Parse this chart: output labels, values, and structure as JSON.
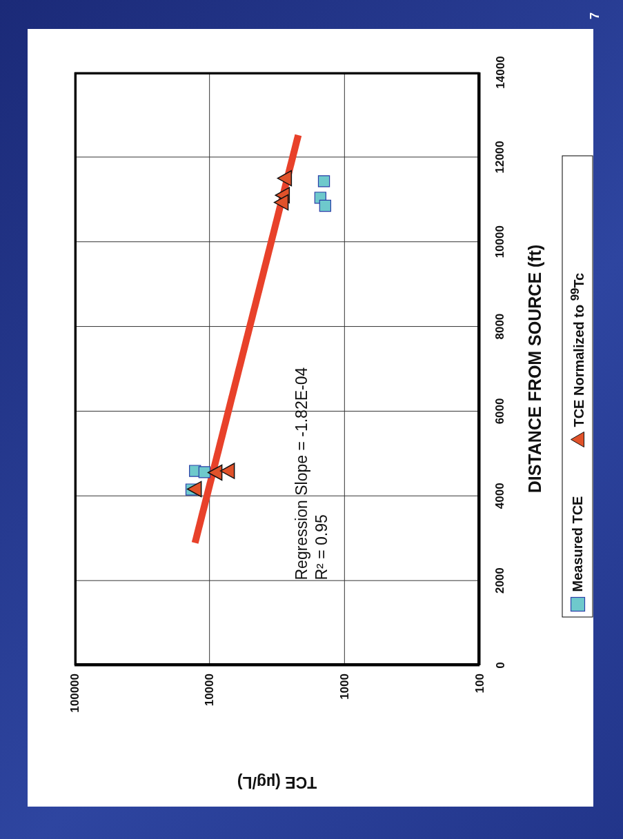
{
  "chart_data": {
    "type": "scatter",
    "xlabel": "TCE  (µg/L)",
    "ylabel": "DISTANCE FROM SOURCE  (ft)",
    "series": [
      {
        "name": "Measured TCE",
        "color": "#6ec9cc",
        "marker": "square",
        "x": [
          12800,
          10900,
          13600,
          1420,
          1510,
          1390
        ],
        "values": [
          4590,
          4560,
          4150,
          11430,
          11040,
          10850
        ]
      },
      {
        "name": "TCE Normalized to $^{99}$Tc",
        "color": "#e0522a",
        "marker": "triangle",
        "x": [
          9000,
          7280,
          12800,
          2750,
          2850,
          2910
        ],
        "values": [
          4550,
          4590,
          4160,
          11500,
          11100,
          10930
        ]
      },
      {
        "type": "line",
        "color": "#e8412a",
        "marker": "none",
        "x": [
          12800,
          2200
        ],
        "values": [
          2890,
          12520
        ]
      }
    ],
    "xlim": [
      100000,
      100
    ],
    "xticks": [
      100000,
      10000,
      1000,
      100
    ],
    "ylim": [
      0,
      14000
    ],
    "yticks": [
      0,
      2000,
      4000,
      6000,
      8000,
      10000,
      12000,
      14000
    ],
    "log": "x",
    "grid": true,
    "legend": "right",
    "annotations": [
      "Regression Slope = -1.82E-04",
      "R² = 0.95",
      "7"
    ]
  }
}
